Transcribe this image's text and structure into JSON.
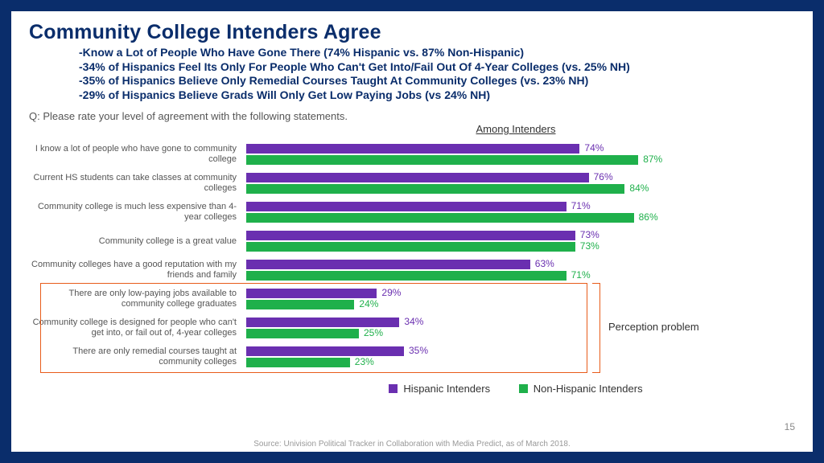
{
  "title": "Community College Intenders Agree",
  "bullets": [
    "-Know a Lot of People Who Have Gone There (74% Hispanic vs. 87% Non-Hispanic)",
    "-34% of Hispanics Feel Its Only For People Who Can't Get Into/Fail Out Of 4-Year Colleges (vs. 25% NH)",
    "-35% of Hispanics Believe Only Remedial Courses Taught At Community Colleges (vs. 23% NH)",
    "-29% of Hispanics Believe Grads Will Only Get Low Paying Jobs (vs 24% NH)"
  ],
  "question": "Q: Please rate your level of agreement with the following statements.",
  "chart_title": "Among Intenders",
  "colors": {
    "series1": "#6a2fb0",
    "series2": "#1fb04b",
    "series1_label": "#6a2fb0",
    "series2_label": "#1fb04b",
    "border": "#0a2d6b",
    "highlight": "#e85c1a"
  },
  "legend": {
    "series1": "Hispanic Intenders",
    "series2": "Non-Hispanic Intenders"
  },
  "xmax": 100,
  "rows": [
    {
      "label": "I know a lot of people who have gone to community college",
      "v1": 74,
      "v2": 87
    },
    {
      "label": "Current HS students can take classes at community colleges",
      "v1": 76,
      "v2": 84
    },
    {
      "label": "Community college is much less expensive than 4-year colleges",
      "v1": 71,
      "v2": 86
    },
    {
      "label": "Community college is a great value",
      "v1": 73,
      "v2": 73
    },
    {
      "label": "Community colleges have a good reputation with my friends and family",
      "v1": 63,
      "v2": 71
    },
    {
      "label": "There are only low-paying jobs available to community college graduates",
      "v1": 29,
      "v2": 24,
      "hl": true
    },
    {
      "label": "Community college is designed for people who can't get into, or fail out of, 4-year colleges",
      "v1": 34,
      "v2": 25,
      "hl": true
    },
    {
      "label": "There are only remedial courses taught at community colleges",
      "v1": 35,
      "v2": 23,
      "hl": true
    }
  ],
  "perception_label": "Perception problem",
  "page_num": "15",
  "source": "Source: Univision Political Tracker in Collaboration with Media Predict, as of March 2018."
}
